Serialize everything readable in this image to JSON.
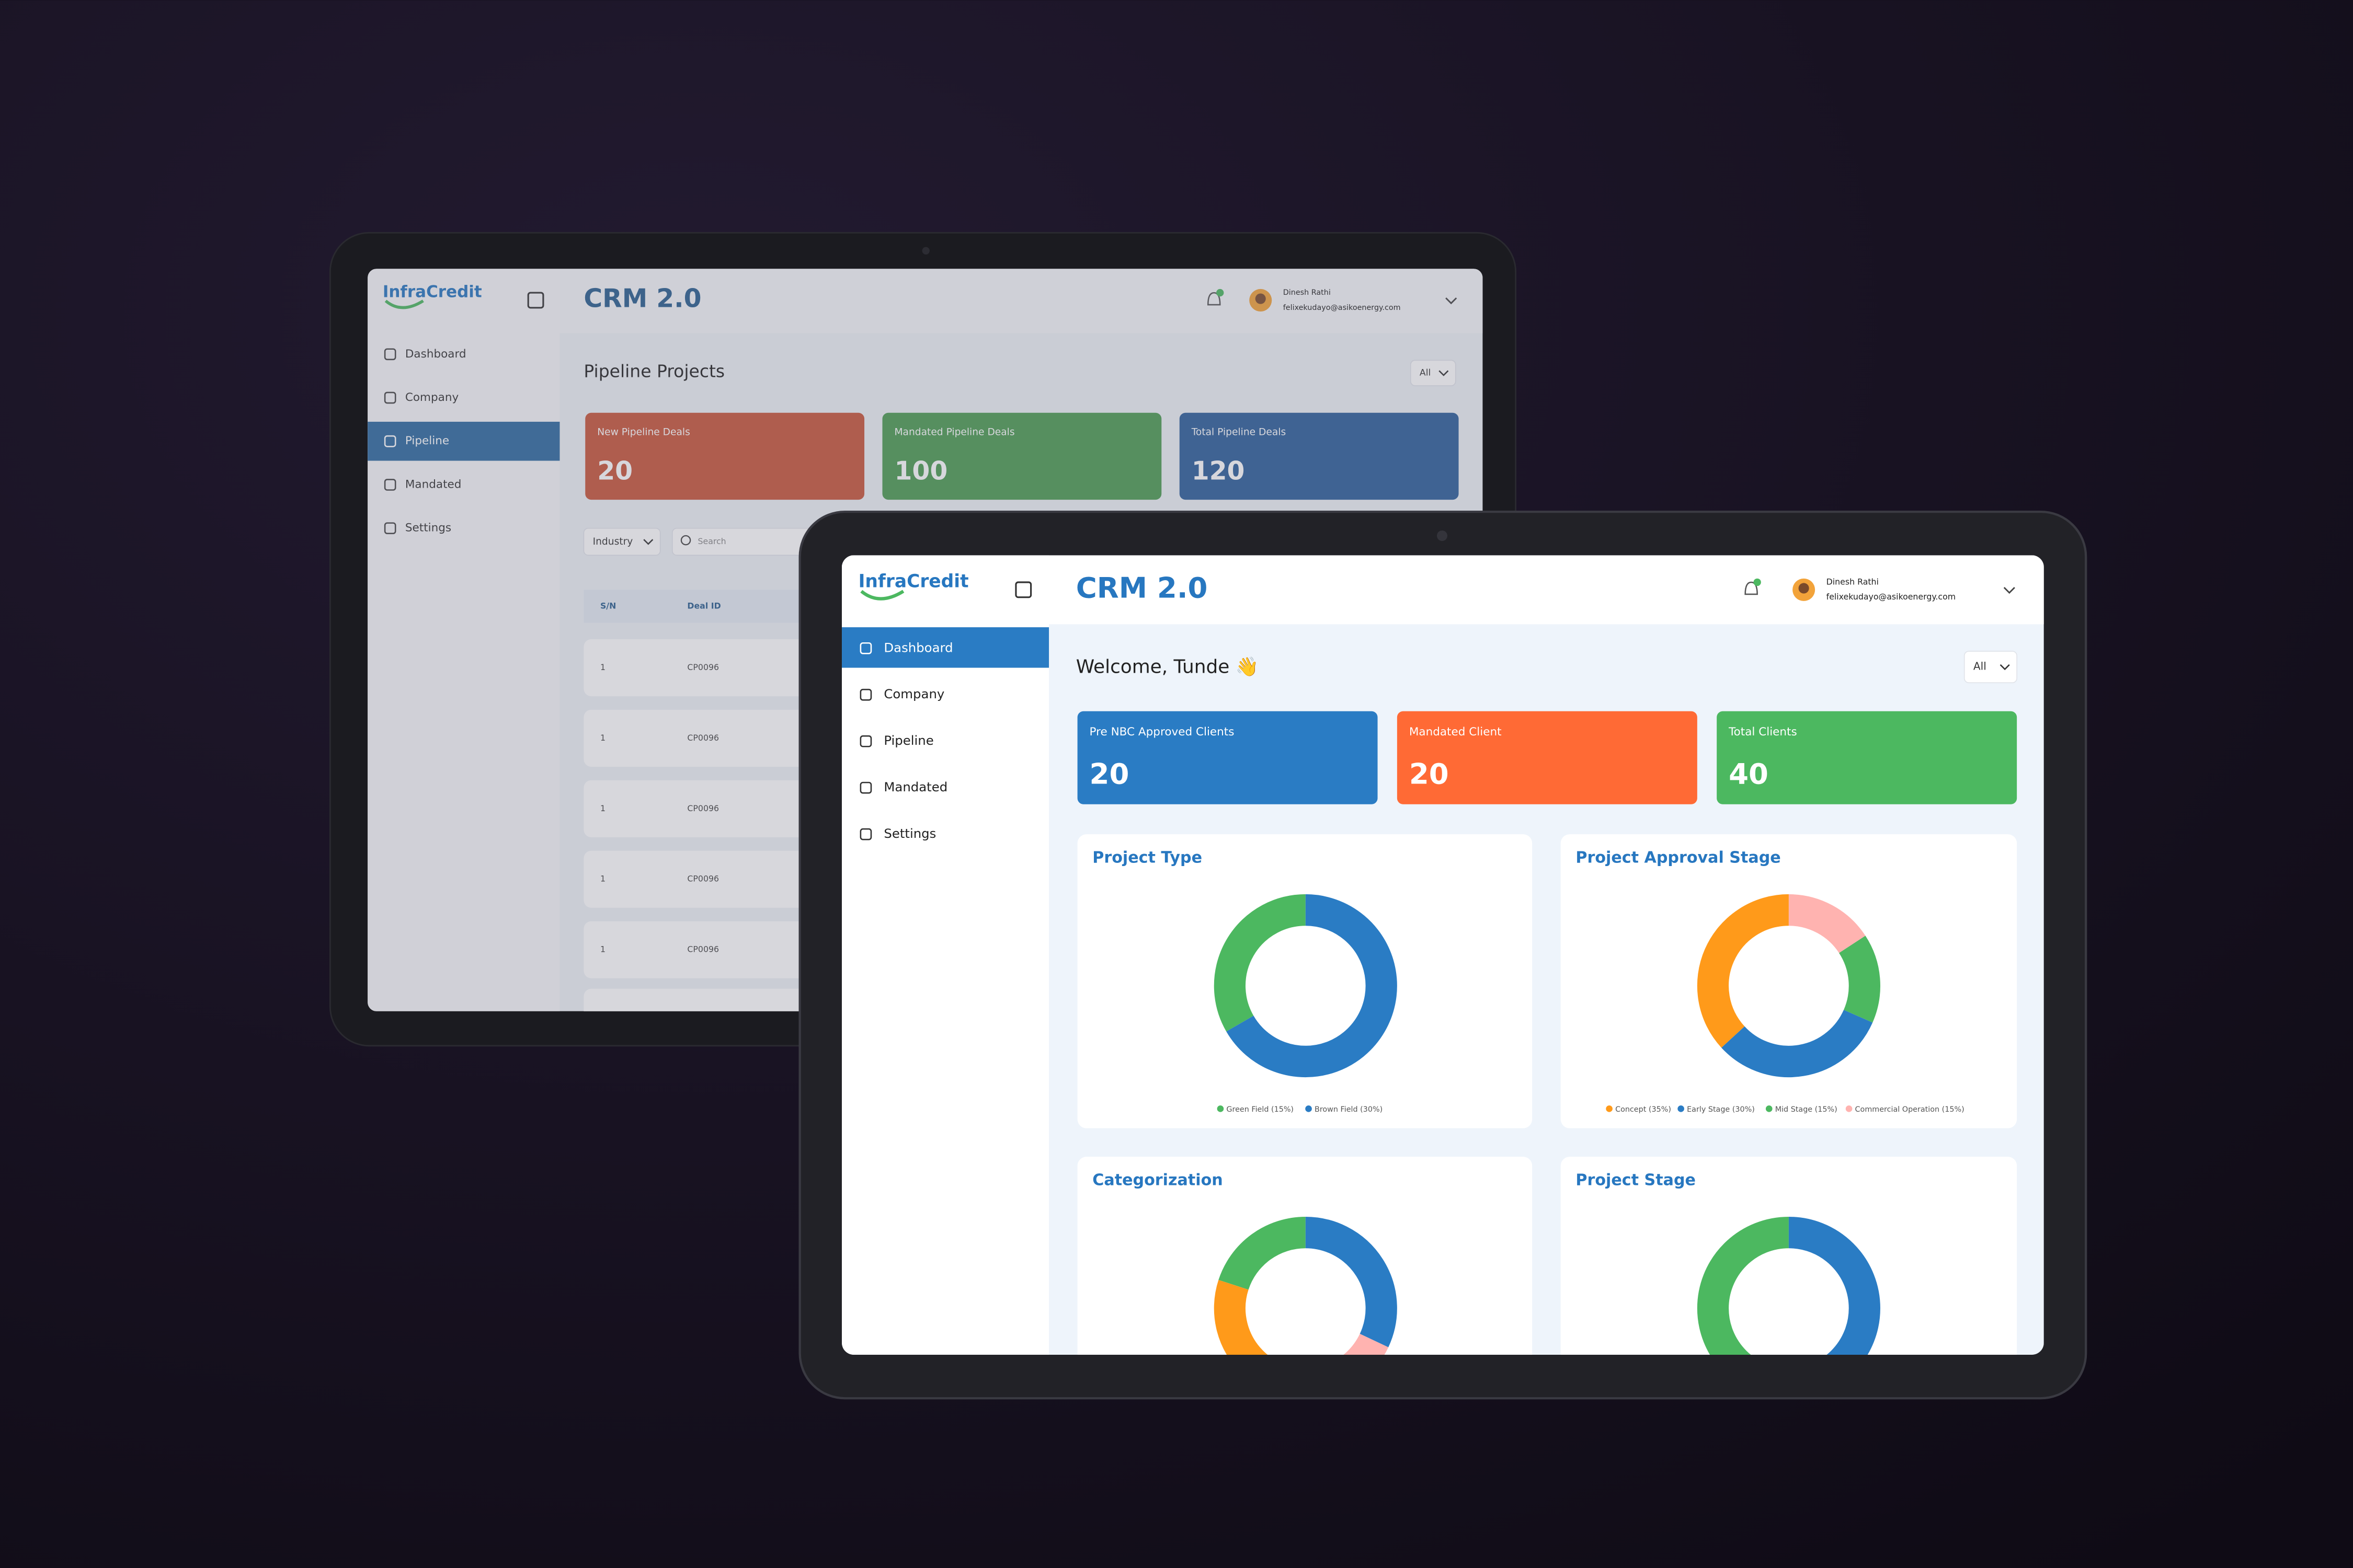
{
  "back_screen": {
    "logo": "InfraCredit",
    "title": "CRM 2.0",
    "user": {
      "name": "Dinesh Rathi",
      "email": "felixekudayo@asikoenergy.com"
    },
    "nav": [
      "Dashboard",
      "Company",
      "Pipeline",
      "Mandated",
      "Settings"
    ],
    "page_title": "Pipeline Projects",
    "filter": "All",
    "cards": [
      {
        "label": "New Pipeline Deals",
        "value": 20,
        "color": "#c8563b"
      },
      {
        "label": "Mandated Pipeline Deals",
        "value": 100,
        "color": "#4d9c52"
      },
      {
        "label": "Total Pipeline Deals",
        "value": 120,
        "color": "#2d5f9a"
      }
    ],
    "industry_filter": "Industry",
    "search_placeholder": "Search",
    "table": {
      "columns": [
        "S/N",
        "Deal ID"
      ],
      "rows": [
        [
          "1",
          "CP0096"
        ],
        [
          "1",
          "CP0096"
        ],
        [
          "1",
          "CP0096"
        ],
        [
          "1",
          "CP0096"
        ],
        [
          "1",
          "CP0096"
        ]
      ]
    }
  },
  "front_screen": {
    "logo": "InfraCredit",
    "title": "CRM 2.0",
    "user": {
      "name": "Dinesh Rathi",
      "email": "felixekudayo@asikoenergy.com"
    },
    "nav": [
      "Dashboard",
      "Company",
      "Pipeline",
      "Mandated",
      "Settings"
    ],
    "welcome": "Welcome, Tunde 👋",
    "filter": "All",
    "cards": [
      {
        "label": "Pre NBC Approved Clients",
        "value": 20,
        "color": "#2a7cc4"
      },
      {
        "label": "Mandated Client",
        "value": 20,
        "color": "#ff6a35"
      },
      {
        "label": "Total Clients",
        "value": 40,
        "color": "#4cb860"
      }
    ],
    "charts": [
      {
        "title": "Project Type",
        "segments": [
          {
            "label": "Green Field (15%)",
            "value": 15,
            "color": "#4cb860"
          },
          {
            "label": "Brown Field (30%)",
            "value": 30,
            "color": "#2a7cc4"
          }
        ]
      },
      {
        "title": "Project Approval Stage",
        "segments": [
          {
            "label": "Concept (35%)",
            "value": 35,
            "color": "#ff9a1a"
          },
          {
            "label": "Early Stage (30%)",
            "value": 30,
            "color": "#2a7cc4"
          },
          {
            "label": "Mid Stage (15%)",
            "value": 15,
            "color": "#4cb860"
          },
          {
            "label": "Commercial Operation (15%)",
            "value": 15,
            "color": "#ffb3b0"
          }
        ]
      },
      {
        "title": "Categorization",
        "segments": [
          {
            "value": 20,
            "color": "#4cb860"
          },
          {
            "value": 36,
            "color": "#ff9a1a"
          },
          {
            "value": 12,
            "color": "#ffb3b0"
          },
          {
            "value": 32,
            "color": "#2a7cc4"
          }
        ]
      },
      {
        "title": "Project Stage",
        "segments": [
          {
            "value": 50,
            "color": "#4cb860"
          },
          {
            "value": 50,
            "color": "#2a7cc4"
          }
        ]
      }
    ]
  }
}
